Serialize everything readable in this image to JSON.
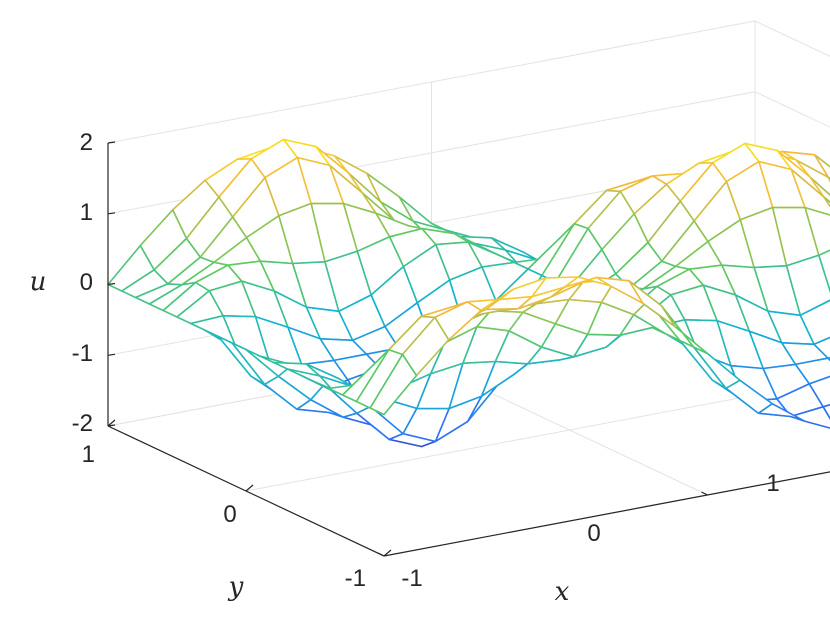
{
  "chart_data": {
    "type": "mesh",
    "xlabel": "x",
    "ylabel": "y",
    "zlabel": "u",
    "xlim": [
      -1,
      1
    ],
    "ylim": [
      -1,
      1
    ],
    "zlim": [
      -2,
      2
    ],
    "x_ticks": [
      "-1",
      "0",
      "1"
    ],
    "y_ticks": [
      "-1",
      "0",
      "1"
    ],
    "z_ticks": [
      "-2",
      "-1",
      "0",
      "1",
      "2"
    ],
    "colormap": [
      "#3e26a8",
      "#2f72f5",
      "#12b3d3",
      "#5ec962",
      "#f5b93b",
      "#f9fb0e"
    ],
    "grid": "on",
    "surface": {
      "x": [
        -1,
        -0.9,
        -0.8,
        -0.7,
        -0.6,
        -0.5,
        -0.4,
        -0.3,
        -0.2,
        -0.1,
        0,
        0.1,
        0.2,
        0.3,
        0.4,
        0.5,
        0.6,
        0.7,
        0.8,
        0.9,
        1
      ],
      "y": [
        -1,
        -0.9,
        -0.8,
        -0.7,
        -0.6,
        -0.5,
        -0.4,
        -0.3,
        -0.2,
        -0.1,
        0,
        0.1,
        0.2,
        0.3,
        0.4,
        0.5,
        0.6,
        0.7,
        0.8,
        0.9,
        1
      ],
      "u_approx": "sin(pi*x)*cos(pi*y)*1.5 + 0.35*sin(3*pi*x)*sin(3*pi*y)",
      "u_min": -2,
      "u_max": 1.9
    }
  }
}
